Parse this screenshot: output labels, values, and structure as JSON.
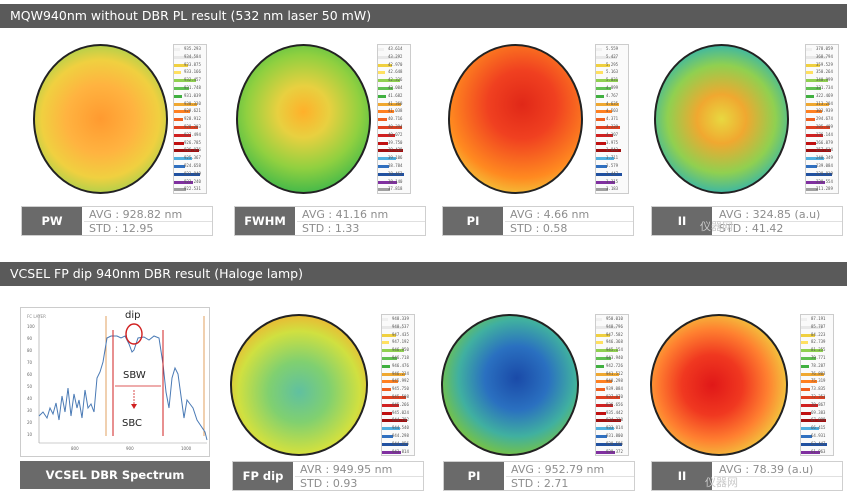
{
  "sections": [
    {
      "title": "MQW940nm without DBR PL result (532 nm laser 50 mW)"
    },
    {
      "title": "VCSEL FP dip 940nm DBR result (Haloge lamp)"
    }
  ],
  "top_panels": [
    {
      "label": "PW",
      "line1": "AVG : 928.82 nm",
      "line2": "STD : 12.95",
      "ticks": [
        "935.293",
        "934.584",
        "933.875",
        "933.166",
        "932.457",
        "931.748",
        "931.039",
        "930.330",
        "929.621",
        "928.912",
        "928.203",
        "927.494",
        "926.785",
        "926.076",
        "925.367",
        "924.658",
        "923.949",
        "923.240",
        "922.531"
      ]
    },
    {
      "label": "FWHM",
      "line1": "AVG : 41.16 nm",
      "line2": "STD : 1.33",
      "ticks": [
        "43.614",
        "43.292",
        "42.970",
        "42.648",
        "42.326",
        "42.004",
        "41.682",
        "41.360",
        "41.038",
        "40.716",
        "40.394",
        "40.072",
        "39.750",
        "39.428",
        "39.106",
        "38.784",
        "38.462",
        "38.140",
        "37.818"
      ]
    },
    {
      "label": "PI",
      "line1": "AVG : 4.66 nm",
      "line2": "STD : 0.58",
      "ticks": [
        "5.559",
        "5.427",
        "5.295",
        "5.163",
        "5.031",
        "4.899",
        "4.767",
        "4.635",
        "4.503",
        "4.371",
        "4.239",
        "4.107",
        "3.975",
        "3.843",
        "3.711",
        "3.579",
        "3.447",
        "3.315",
        "3.183"
      ]
    },
    {
      "label": "II",
      "line1": "AVG : 324.85 (a.u)",
      "line2": "STD : 41.42",
      "ticks": [
        "378.059",
        "368.794",
        "359.529",
        "350.264",
        "340.999",
        "331.734",
        "322.469",
        "313.204",
        "303.939",
        "294.674",
        "285.409",
        "276.144",
        "266.879",
        "257.614",
        "248.349",
        "239.084",
        "229.819",
        "220.554",
        "211.289"
      ]
    }
  ],
  "spectrum": {
    "label": "VCSEL DBR Spectrum",
    "legend": "FC LAYER",
    "annotations": {
      "dip": "dip",
      "sbw": "SBW",
      "sbc": "SBC"
    },
    "y_ticks": [
      "100",
      "90",
      "80",
      "70",
      "60",
      "50",
      "40",
      "30",
      "20",
      "10"
    ],
    "x_ticks": [
      "800",
      "900",
      "1000"
    ]
  },
  "bottom_panels": [
    {
      "label": "FP dip",
      "line1": "AVR : 949.95 nm",
      "line2": "STD : 0.93",
      "ticks": [
        "948.339",
        "948.537",
        "947.435",
        "947.192",
        "946.950",
        "946.718",
        "946.476",
        "946.234",
        "945.992",
        "945.750",
        "945.508",
        "945.266",
        "945.024",
        "944.782",
        "944.540",
        "944.298",
        "944.056",
        "943.814",
        "943.572"
      ]
    },
    {
      "label": "PI",
      "line1": "AVG : 952.79 nm",
      "line2": "STD : 2.71",
      "ticks": [
        "950.010",
        "948.796",
        "947.582",
        "946.368",
        "945.154",
        "943.940",
        "942.726",
        "941.512",
        "940.298",
        "939.084",
        "937.870",
        "936.656",
        "935.442",
        "934.228",
        "933.014",
        "931.800",
        "930.586",
        "929.372",
        "928.158"
      ]
    },
    {
      "label": "II",
      "line1": "AVG : 78.39 (a.u)",
      "line2": "",
      "ticks": [
        "87.191",
        "85.707",
        "84.223",
        "82.739",
        "81.255",
        "79.771",
        "78.287",
        "76.803",
        "75.319",
        "73.835",
        "72.351",
        "70.867",
        "69.383",
        "67.899",
        "66.415",
        "64.931",
        "63.447",
        "61.963",
        "60.479"
      ]
    }
  ],
  "watermark": "仪器网"
}
